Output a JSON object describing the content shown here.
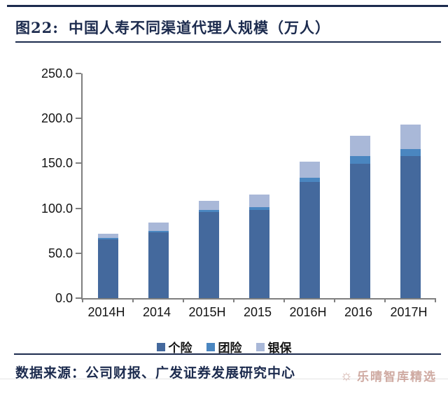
{
  "header": {
    "figure_label": "图22:",
    "title": "中国人寿不同渠道代理人规模（万人）"
  },
  "chart_data": {
    "type": "bar",
    "stacked": true,
    "title": "中国人寿不同渠道代理人规模（万人）",
    "categories": [
      "2014H",
      "2014",
      "2015H",
      "2015",
      "2016H",
      "2016",
      "2017H"
    ],
    "series": [
      {
        "name": "个险",
        "color": "#44699d",
        "values": [
          65.5,
          73.0,
          96.0,
          98.0,
          129.0,
          149.5,
          157.8
        ]
      },
      {
        "name": "团险",
        "color": "#4a86c0",
        "values": [
          1.5,
          2.0,
          2.0,
          3.5,
          5.0,
          8.5,
          8.0
        ]
      },
      {
        "name": "银保",
        "color": "#a9b8d8",
        "values": [
          4.5,
          9.0,
          10.0,
          14.0,
          18.0,
          23.0,
          27.0
        ]
      }
    ],
    "totals": [
      71.5,
      84.0,
      108.0,
      115.5,
      152.0,
      181.0,
      192.8
    ],
    "xlabel": "",
    "ylabel": "",
    "ylim": [
      0,
      250
    ],
    "y_ticks": [
      "250.0",
      "200.0",
      "150.0",
      "100.0",
      "50.0",
      "0.0"
    ],
    "grid": false,
    "legend_position": "bottom"
  },
  "footer": {
    "source": "数据来源：公司财报、广发证券发展研究中心"
  },
  "watermark": {
    "icon": "sun-icon",
    "icon_glyph": "☼",
    "text": "乐晴智库精选",
    "color": "#c79c92"
  },
  "colors": {
    "accent_navy": "#1c2b4e",
    "axis_gray": "#7f7f7f"
  }
}
